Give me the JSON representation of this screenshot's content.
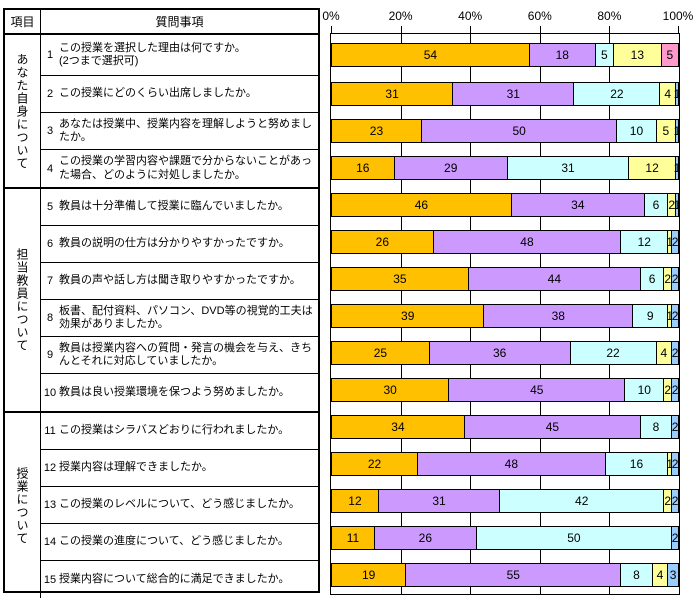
{
  "table": {
    "header": {
      "category_col": "項目",
      "question_col": "質問事項"
    },
    "groups": [
      {
        "label": "あなた自身について",
        "question_nos": [
          1,
          2,
          3,
          4
        ]
      },
      {
        "label": "担当教員について",
        "question_nos": [
          5,
          6,
          7,
          8,
          9,
          10
        ]
      },
      {
        "label": "授業について",
        "question_nos": [
          11,
          12,
          13,
          14,
          15
        ]
      }
    ],
    "questions": [
      {
        "no": "1",
        "lines": [
          "この授業を選択した理由は何ですか。",
          "(2つまで選択可)"
        ]
      },
      {
        "no": "2",
        "lines": [
          "この授業にどのくらい出席しましたか。"
        ]
      },
      {
        "no": "3",
        "lines": [
          "あなたは授業中、授業内容を理解しようと努めましたか。"
        ]
      },
      {
        "no": "4",
        "lines": [
          "この授業の学習内容や課題で分からないことがあった場合、どのように対処しましたか。"
        ]
      },
      {
        "no": "5",
        "lines": [
          "教員は十分準備して授業に臨んでいましたか。"
        ]
      },
      {
        "no": "6",
        "lines": [
          "教員の説明の仕方は分かりやすかったですか。"
        ]
      },
      {
        "no": "7",
        "lines": [
          "教員の声や話し方は聞き取りやすかったですか。"
        ]
      },
      {
        "no": "8",
        "lines": [
          "板書、配付資料、パソコン、DVD等の視覚的工夫は効果がありましたか。"
        ]
      },
      {
        "no": "9",
        "lines": [
          "教員は授業内容への質問・発言の機会を与え、きちんとそれに対応していましたか。"
        ]
      },
      {
        "no": "10",
        "lines": [
          "教員は良い授業環境を保つよう努めましたか。"
        ]
      },
      {
        "no": "11",
        "lines": [
          "この授業はシラバスどおりに行われましたか。"
        ]
      },
      {
        "no": "12",
        "lines": [
          "授業内容は理解できましたか。"
        ]
      },
      {
        "no": "13",
        "lines": [
          "この授業のレベルについて、どう感じましたか。"
        ]
      },
      {
        "no": "14",
        "lines": [
          "この授業の進度について、どう感じましたか。"
        ]
      },
      {
        "no": "15",
        "lines": [
          "授業内容について総合的に満足できましたか。"
        ]
      }
    ]
  },
  "chart_data": {
    "type": "bar",
    "variant": "horizontal-stacked",
    "title": "",
    "xlabel": "",
    "ylabel": "",
    "xlim": [
      0,
      100
    ],
    "axis_ticks": [
      "0%",
      "20%",
      "40%",
      "60%",
      "80%",
      "100%"
    ],
    "grid": "vertical",
    "legend": "none",
    "note": "each bar is normalized to fill 0-100% of the axis; numbers are the displayed data labels",
    "colors": {
      "gold": "#FFC000",
      "purple": "#CC99FF",
      "cyan": "#CCFFFF",
      "yellow": "#FFFF99",
      "pink": "#FF99CC",
      "blue": "#99CCFF"
    },
    "rows": [
      {
        "question": 1,
        "segments": [
          {
            "color": "gold",
            "value": 54
          },
          {
            "color": "purple",
            "value": 18
          },
          {
            "color": "cyan",
            "value": 5
          },
          {
            "color": "yellow",
            "value": 13
          },
          {
            "color": "pink",
            "value": 5
          }
        ]
      },
      {
        "question": 2,
        "segments": [
          {
            "color": "gold",
            "value": 31
          },
          {
            "color": "purple",
            "value": 31
          },
          {
            "color": "cyan",
            "value": 22
          },
          {
            "color": "yellow",
            "value": 4
          },
          {
            "color": "blue",
            "value": 1
          }
        ]
      },
      {
        "question": 3,
        "segments": [
          {
            "color": "gold",
            "value": 23
          },
          {
            "color": "purple",
            "value": 50
          },
          {
            "color": "cyan",
            "value": 10
          },
          {
            "color": "yellow",
            "value": 5
          },
          {
            "color": "blue",
            "value": 1
          }
        ]
      },
      {
        "question": 4,
        "segments": [
          {
            "color": "gold",
            "value": 16
          },
          {
            "color": "purple",
            "value": 29
          },
          {
            "color": "cyan",
            "value": 31
          },
          {
            "color": "yellow",
            "value": 12
          },
          {
            "color": "blue",
            "value": 1
          }
        ]
      },
      {
        "question": 5,
        "segments": [
          {
            "color": "gold",
            "value": 46
          },
          {
            "color": "purple",
            "value": 34
          },
          {
            "color": "cyan",
            "value": 6
          },
          {
            "color": "yellow",
            "value": 2
          },
          {
            "color": "blue",
            "value": 1
          }
        ]
      },
      {
        "question": 6,
        "segments": [
          {
            "color": "gold",
            "value": 26
          },
          {
            "color": "purple",
            "value": 48
          },
          {
            "color": "cyan",
            "value": 12
          },
          {
            "color": "yellow",
            "value": 1
          },
          {
            "color": "blue",
            "value": 2
          }
        ]
      },
      {
        "question": 7,
        "segments": [
          {
            "color": "gold",
            "value": 35
          },
          {
            "color": "purple",
            "value": 44
          },
          {
            "color": "cyan",
            "value": 6
          },
          {
            "color": "yellow",
            "value": 2
          },
          {
            "color": "blue",
            "value": 2
          }
        ]
      },
      {
        "question": 8,
        "segments": [
          {
            "color": "gold",
            "value": 39
          },
          {
            "color": "purple",
            "value": 38
          },
          {
            "color": "cyan",
            "value": 9
          },
          {
            "color": "yellow",
            "value": 1
          },
          {
            "color": "blue",
            "value": 2
          }
        ]
      },
      {
        "question": 9,
        "segments": [
          {
            "color": "gold",
            "value": 25
          },
          {
            "color": "purple",
            "value": 36
          },
          {
            "color": "cyan",
            "value": 22
          },
          {
            "color": "yellow",
            "value": 4
          },
          {
            "color": "blue",
            "value": 2
          }
        ]
      },
      {
        "question": 10,
        "segments": [
          {
            "color": "gold",
            "value": 30
          },
          {
            "color": "purple",
            "value": 45
          },
          {
            "color": "cyan",
            "value": 10
          },
          {
            "color": "yellow",
            "value": 2
          },
          {
            "color": "blue",
            "value": 2
          }
        ]
      },
      {
        "question": 11,
        "segments": [
          {
            "color": "gold",
            "value": 34
          },
          {
            "color": "purple",
            "value": 45
          },
          {
            "color": "cyan",
            "value": 8
          },
          {
            "color": "blue",
            "value": 2
          }
        ]
      },
      {
        "question": 12,
        "segments": [
          {
            "color": "gold",
            "value": 22
          },
          {
            "color": "purple",
            "value": 48
          },
          {
            "color": "cyan",
            "value": 16
          },
          {
            "color": "yellow",
            "value": 1
          },
          {
            "color": "blue",
            "value": 2
          }
        ]
      },
      {
        "question": 13,
        "segments": [
          {
            "color": "gold",
            "value": 12
          },
          {
            "color": "purple",
            "value": 31
          },
          {
            "color": "cyan",
            "value": 42
          },
          {
            "color": "yellow",
            "value": 2
          },
          {
            "color": "blue",
            "value": 2
          }
        ]
      },
      {
        "question": 14,
        "segments": [
          {
            "color": "gold",
            "value": 11
          },
          {
            "color": "purple",
            "value": 26
          },
          {
            "color": "cyan",
            "value": 50
          },
          {
            "color": "blue",
            "value": 2
          }
        ]
      },
      {
        "question": 15,
        "segments": [
          {
            "color": "gold",
            "value": 19
          },
          {
            "color": "purple",
            "value": 55
          },
          {
            "color": "cyan",
            "value": 8
          },
          {
            "color": "yellow",
            "value": 4
          },
          {
            "color": "blue",
            "value": 3
          }
        ]
      }
    ]
  }
}
